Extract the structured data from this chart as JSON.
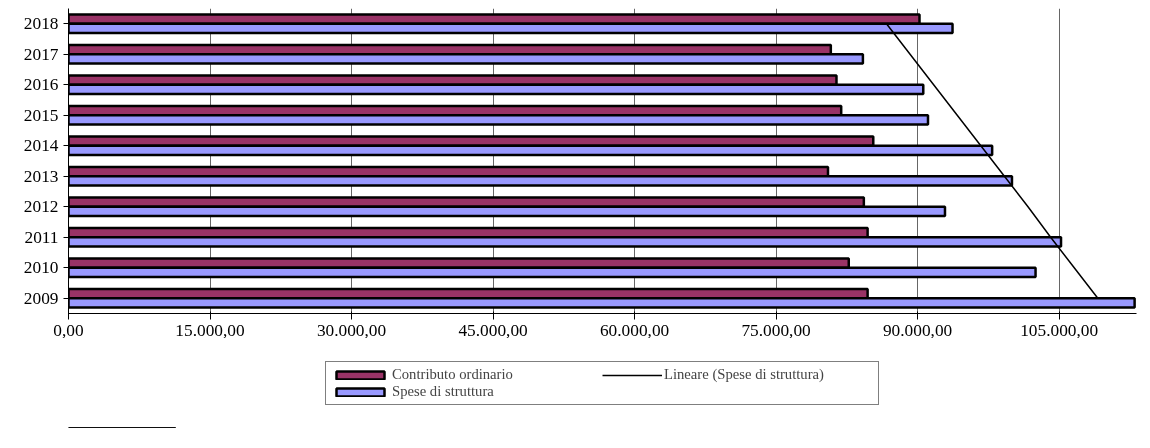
{
  "chart_data": {
    "type": "bar",
    "orientation": "horizontal",
    "categories": [
      "2018",
      "2017",
      "2016",
      "2015",
      "2014",
      "2013",
      "2012",
      "2011",
      "2010",
      "2009"
    ],
    "series": [
      {
        "name": "Contributo ordinario",
        "color": "#993366",
        "values": [
          90200,
          80800,
          81400,
          81900,
          85300,
          80500,
          84300,
          84700,
          82700,
          84700
        ]
      },
      {
        "name": "Spese di struttura",
        "color": "#9999ff",
        "values": [
          93700,
          84200,
          90600,
          91100,
          97900,
          100000,
          92900,
          105200,
          102500,
          113000
        ]
      },
      {
        "name": "Lineare (Spese di struttura)",
        "type": "line",
        "color": "#000000",
        "values": [
          86700,
          89200,
          91700,
          94200,
          96700,
          99200,
          101700,
          104100,
          106600,
          109100
        ]
      }
    ],
    "xlim": [
      0,
      113200
    ],
    "xticks": [
      {
        "value": 0,
        "label": "0,00"
      },
      {
        "value": 15000,
        "label": "15.000,00"
      },
      {
        "value": 30000,
        "label": "30.000,00"
      },
      {
        "value": 45000,
        "label": "45.000,00"
      },
      {
        "value": 60000,
        "label": "60.000,00"
      },
      {
        "value": 75000,
        "label": "75.000,00"
      },
      {
        "value": 90000,
        "label": "90.000,00"
      },
      {
        "value": 105000,
        "label": "105.000,00"
      }
    ],
    "grid": "x",
    "legend": "bottom"
  }
}
